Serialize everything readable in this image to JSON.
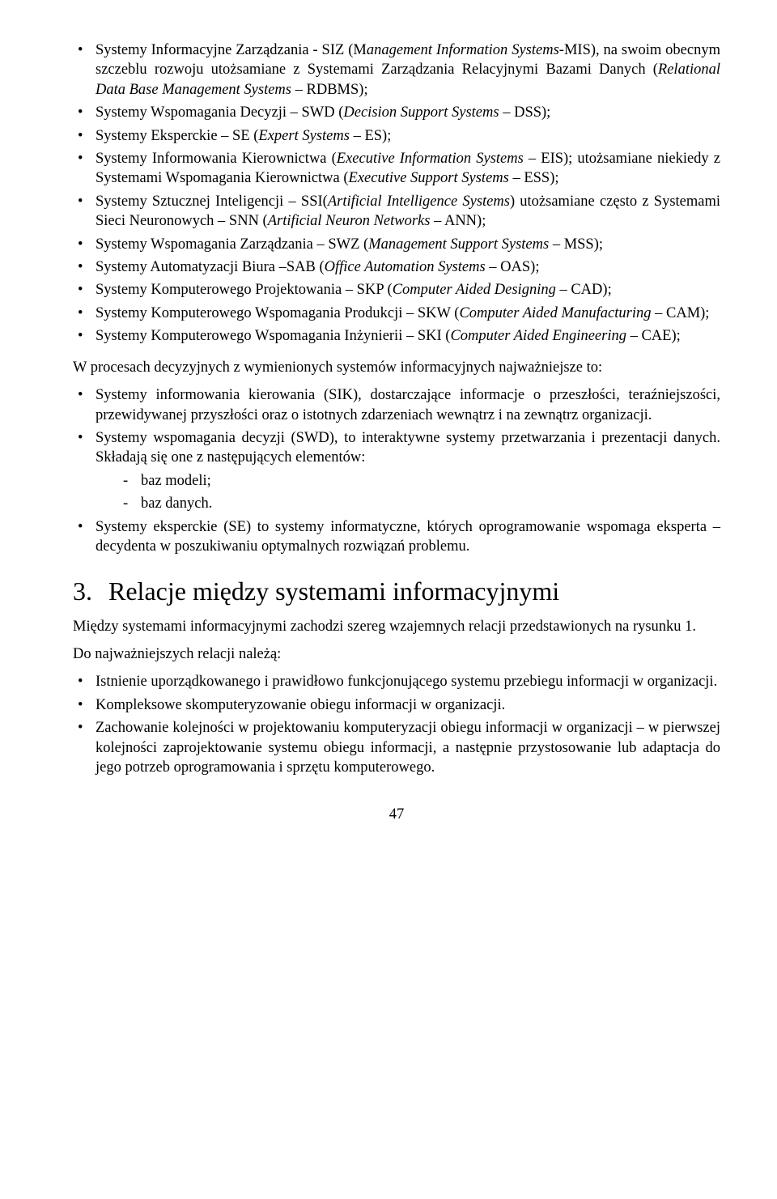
{
  "list1": [
    "Systemy Informacyjne Zarządzania - SIZ (M<i>anagement Information Systems</i>-MIS), na swoim obecnym szczeblu rozwoju utożsamiane z Systemami Zarządzania Relacyjnymi Bazami Danych (<i>Relational Data Base Management Systems</i> – RDBMS);",
    "Systemy Wspomagania Decyzji – SWD (<i>Decision Support Systems</i> – DSS);",
    "Systemy Eksperckie – SE (<i>Expert Systems</i> – ES);",
    "Systemy Informowania Kierownictwa (<i>Executive Information Systems</i> – EIS); utożsamiane niekiedy z Systemami Wspomagania Kierownictwa (<i>Executive Support Systems</i> – ESS);",
    "Systemy Sztucznej Inteligencji – SSI(<i>Artificial Intelligence Systems</i>) utożsamiane często z Systemami Sieci Neuronowych – SNN (<i>Artificial Neuron Networks</i> – ANN);",
    "Systemy Wspomagania Zarządzania – SWZ (<i>Management Support Systems</i> – MSS);",
    "Systemy Automatyzacji Biura –SAB (<i>Office Automation Systems</i> – OAS);",
    "Systemy Komputerowego Projektowania – SKP (<i>Computer Aided Designing</i> – CAD);",
    "Systemy Komputerowego Wspomagania Produkcji – SKW (<i>Computer Aided Manufacturing</i> – CAM);",
    "Systemy Komputerowego Wspomagania Inżynierii – SKI (<i>Computer Aided Engineering</i> – CAE);"
  ],
  "para1": "W procesach decyzyjnych z wymienionych systemów informacyjnych najważniejsze to:",
  "list2": [
    "Systemy informowania kierowania (SIK), dostarczające informacje o przeszłości, teraźniejszości, przewidywanej przyszłości oraz o istotnych zdarzeniach wewnątrz i na zewnątrz organizacji.",
    "Systemy wspomagania decyzji (SWD), to interaktywne systemy przetwarzania i prezentacji danych. Składają się one z następujących elementów:"
  ],
  "sublist": [
    "baz modeli;",
    "baz danych."
  ],
  "list2_after": [
    "Systemy eksperckie (SE) to systemy informatyczne, których oprogramowanie wspomaga eksperta – decydenta w poszukiwaniu optymalnych rozwiązań problemu."
  ],
  "heading_num": "3.",
  "heading_text": "Relacje między systemami informacyjnymi",
  "para2": "Między systemami informacyjnymi zachodzi szereg wzajemnych relacji przedstawionych na rysunku 1.",
  "para3": "Do najważniejszych relacji należą:",
  "list3": [
    "Istnienie uporządkowanego i prawidłowo funkcjonującego systemu przebiegu informacji w organizacji.",
    "Kompleksowe skomputeryzowanie obiegu informacji w organizacji.",
    "Zachowanie kolejności w projektowaniu komputeryzacji obiegu informacji w organizacji – w pierwszej kolejności zaprojektowanie systemu obiegu informacji, a następnie przystosowanie lub adaptacja do jego potrzeb oprogramowania i sprzętu komputerowego."
  ],
  "page_number": "47"
}
